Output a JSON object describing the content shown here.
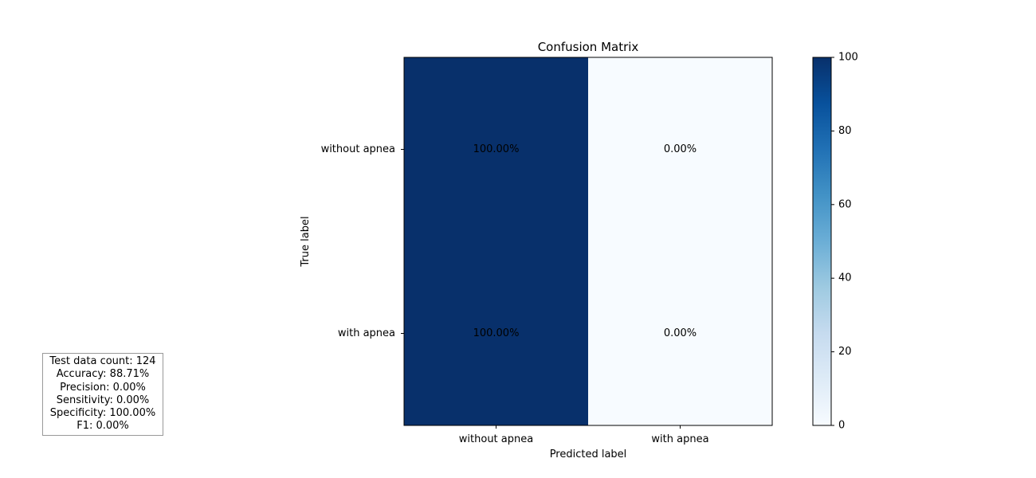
{
  "chart_data": {
    "type": "heatmap",
    "title": "Confusion Matrix",
    "xlabel": "Predicted label",
    "ylabel": "True label",
    "x_categories": [
      "without apnea",
      "with apnea"
    ],
    "y_categories": [
      "without apnea",
      "with apnea"
    ],
    "values": [
      [
        100.0,
        0.0
      ],
      [
        100.0,
        0.0
      ]
    ],
    "cell_labels": [
      [
        "100.00%",
        "0.00%"
      ],
      [
        "100.00%",
        "0.00%"
      ]
    ],
    "colormap": "Blues",
    "colorbar": {
      "range": [
        0,
        100
      ],
      "ticks": [
        0,
        20,
        40,
        60,
        80,
        100
      ]
    },
    "text_color": "#000000"
  },
  "metrics": {
    "test_count": "Test data count: 124",
    "accuracy": "Accuracy: 88.71%",
    "precision": "Precision: 0.00%",
    "sensitivity": "Sensitivity: 0.00%",
    "specificity": "Specificity: 100.00%",
    "f1": "F1: 0.00%"
  }
}
